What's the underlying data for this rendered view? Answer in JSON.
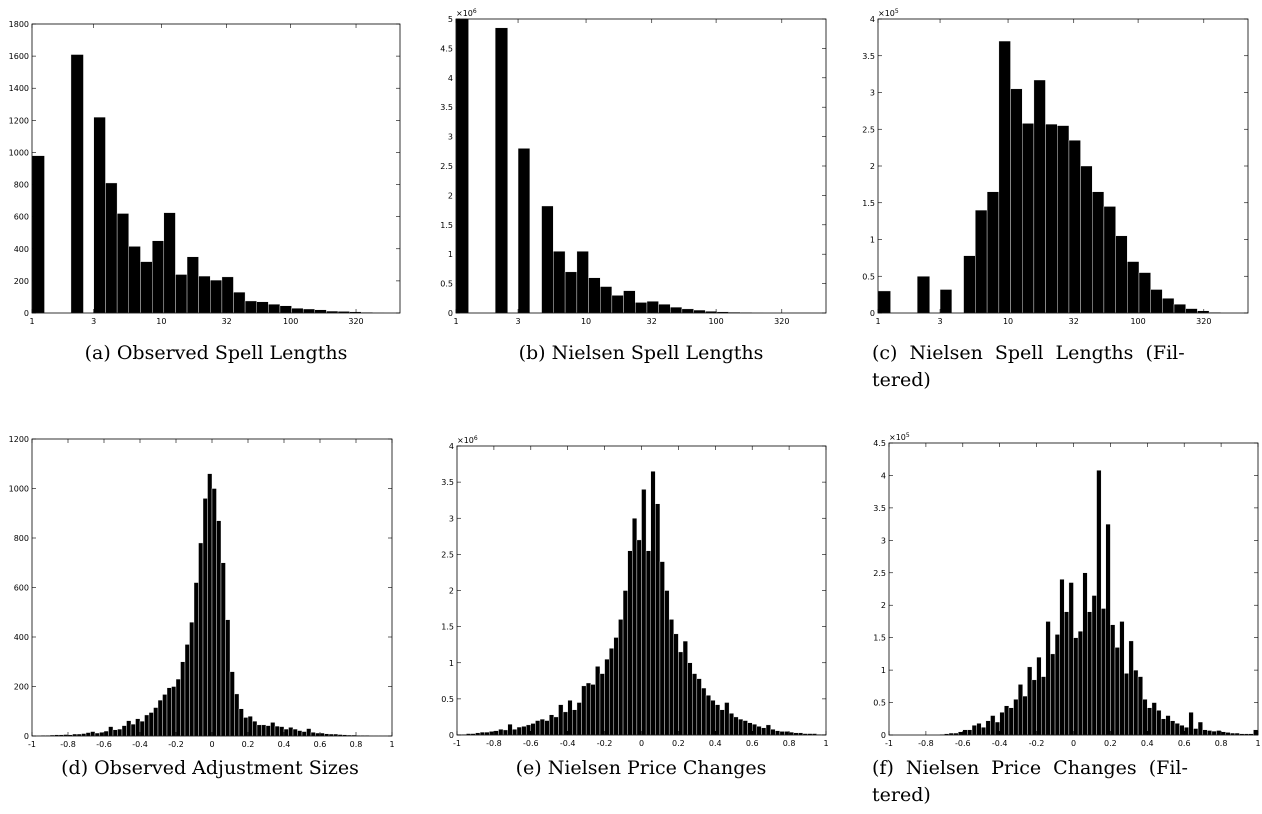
{
  "bar_color": "#000000",
  "bar_edge_color": "#ffffff",
  "axes_color": "#000000",
  "chart_data": [
    {
      "id": "a",
      "type": "bar",
      "caption": "(a) Observed Spell Lengths",
      "title": "",
      "xlabel": "",
      "ylabel": "",
      "x_scale": "log",
      "xlim": [
        1,
        700
      ],
      "ylim": [
        0,
        1800
      ],
      "yticks": [
        0,
        200,
        400,
        600,
        800,
        1000,
        1200,
        1400,
        1600,
        1800
      ],
      "ytick_labels": [
        "0",
        "200",
        "400",
        "600",
        "800",
        "1000",
        "1200",
        "1400",
        "1600",
        "1800"
      ],
      "xticks": [
        1,
        3,
        10,
        32,
        100,
        320
      ],
      "xtick_labels": [
        "1",
        "3",
        "10",
        "32",
        "100",
        "320"
      ],
      "y_exponent": "",
      "bin_edges": [
        1,
        1.25,
        2,
        2.5,
        3,
        3.7,
        4.55,
        5.6,
        6.9,
        8.5,
        10.45,
        12.85,
        15.8,
        19.4,
        23.9,
        29.4,
        36.1,
        44.4,
        54.6,
        67.2,
        82.6,
        101.6,
        124.9,
        153.6,
        188.9,
        232.3,
        285.7,
        351.4,
        432.1,
        531.4
      ],
      "values": [
        980,
        0,
        1610,
        0,
        1220,
        810,
        620,
        415,
        320,
        450,
        625,
        240,
        350,
        230,
        205,
        225,
        130,
        75,
        70,
        55,
        45,
        30,
        25,
        20,
        12,
        10,
        8,
        5,
        3
      ]
    },
    {
      "id": "b",
      "type": "bar",
      "caption": "(b) Nielsen Spell Lengths",
      "title": "",
      "xlabel": "",
      "ylabel": "",
      "x_scale": "log",
      "xlim": [
        1,
        700
      ],
      "ylim": [
        0,
        5
      ],
      "yticks": [
        0,
        0.5,
        1,
        1.5,
        2,
        2.5,
        3,
        3.5,
        4,
        4.5,
        5
      ],
      "ytick_labels": [
        "0",
        "0.5",
        "1",
        "1.5",
        "2",
        "2.5",
        "3",
        "3.5",
        "4",
        "4.5",
        "5"
      ],
      "xticks": [
        1,
        3,
        10,
        32,
        100,
        320
      ],
      "xtick_labels": [
        "1",
        "3",
        "10",
        "32",
        "100",
        "320"
      ],
      "y_exponent": "6",
      "bin_edges": [
        1,
        1.25,
        2,
        2.5,
        3,
        3.7,
        4.55,
        5.6,
        6.9,
        8.5,
        10.45,
        12.85,
        15.8,
        19.4,
        23.9,
        29.4,
        36.1,
        44.4,
        54.6,
        67.2,
        82.6,
        101.6,
        124.9,
        153.6,
        188.9,
        232.3,
        285.7,
        351.4,
        432.1,
        531.4
      ],
      "values": [
        5.0,
        0,
        4.85,
        0,
        2.8,
        0,
        1.82,
        1.05,
        0.7,
        1.05,
        0.6,
        0.45,
        0.3,
        0.38,
        0.18,
        0.2,
        0.15,
        0.1,
        0.07,
        0.05,
        0.03,
        0.02,
        0.015,
        0.01,
        0.008,
        0.005,
        0.004,
        0.003,
        0.002
      ]
    },
    {
      "id": "c",
      "type": "bar",
      "caption": "(c) Nielsen Spell Lengths (Fil-tered)",
      "caption_line1": "(c)  Nielsen  Spell  Lengths  (Fil-",
      "caption_line2": "tered)",
      "title": "",
      "xlabel": "",
      "ylabel": "",
      "x_scale": "log",
      "xlim": [
        1,
        700
      ],
      "ylim": [
        0,
        4
      ],
      "yticks": [
        0,
        0.5,
        1,
        1.5,
        2,
        2.5,
        3,
        3.5,
        4
      ],
      "ytick_labels": [
        "0",
        "0.5",
        "1",
        "1.5",
        "2",
        "2.5",
        "3",
        "3.5",
        "4"
      ],
      "xticks": [
        1,
        3,
        10,
        32,
        100,
        320
      ],
      "xtick_labels": [
        "1",
        "3",
        "10",
        "32",
        "100",
        "320"
      ],
      "y_exponent": "5",
      "bin_edges": [
        1,
        1.25,
        2,
        2.5,
        3,
        3.7,
        4.55,
        5.6,
        6.9,
        8.5,
        10.45,
        12.85,
        15.8,
        19.4,
        23.9,
        29.4,
        36.1,
        44.4,
        54.6,
        67.2,
        82.6,
        101.6,
        124.9,
        153.6,
        188.9,
        232.3,
        285.7,
        351.4,
        432.1,
        531.4
      ],
      "values": [
        0.3,
        0,
        0.5,
        0,
        0.32,
        0,
        0.78,
        1.4,
        1.65,
        3.7,
        3.05,
        2.58,
        3.17,
        2.57,
        2.55,
        2.35,
        2.0,
        1.65,
        1.45,
        1.05,
        0.7,
        0.55,
        0.32,
        0.2,
        0.12,
        0.06,
        0.03,
        0.01,
        0.005
      ]
    },
    {
      "id": "d",
      "type": "bar",
      "caption": "(d) Observed Adjustment Sizes",
      "title": "",
      "xlabel": "",
      "ylabel": "",
      "x_scale": "linear",
      "xlim": [
        -1,
        1
      ],
      "ylim": [
        0,
        1200
      ],
      "yticks": [
        0,
        200,
        400,
        600,
        800,
        1000,
        1200
      ],
      "ytick_labels": [
        "0",
        "200",
        "400",
        "600",
        "800",
        "1000",
        "1200"
      ],
      "xticks": [
        -1,
        -0.8,
        -0.6,
        -0.4,
        -0.2,
        0,
        0.2,
        0.4,
        0.6,
        0.8,
        1
      ],
      "xtick_labels": [
        "-1",
        "-0.8",
        "-0.6",
        "-0.4",
        "-0.2",
        "0",
        "0.2",
        "0.4",
        "0.6",
        "0.8",
        "1"
      ],
      "y_exponent": "",
      "bin_edges_range": [
        -1,
        1
      ],
      "values": [
        2,
        2,
        3,
        3,
        4,
        5,
        5,
        6,
        5,
        8,
        8,
        10,
        14,
        18,
        12,
        15,
        20,
        38,
        25,
        28,
        42,
        62,
        48,
        70,
        60,
        85,
        95,
        115,
        145,
        168,
        195,
        200,
        230,
        300,
        370,
        460,
        620,
        780,
        960,
        1060,
        1000,
        870,
        700,
        470,
        260,
        170,
        110,
        75,
        80,
        60,
        45,
        45,
        42,
        55,
        40,
        38,
        28,
        35,
        28,
        22,
        18,
        30,
        15,
        12,
        12,
        9,
        8,
        8,
        6,
        5,
        4,
        4,
        3,
        3,
        3,
        2,
        2,
        2,
        2,
        2
      ]
    },
    {
      "id": "e",
      "type": "bar",
      "caption": "(e) Nielsen Price Changes",
      "title": "",
      "xlabel": "",
      "ylabel": "",
      "x_scale": "linear",
      "xlim": [
        -1,
        1
      ],
      "ylim": [
        0,
        4
      ],
      "yticks": [
        0,
        0.5,
        1,
        1.5,
        2,
        2.5,
        3,
        3.5,
        4
      ],
      "ytick_labels": [
        "0",
        "0.5",
        "1",
        "1.5",
        "2",
        "2.5",
        "3",
        "3.5",
        "4"
      ],
      "xticks": [
        -1,
        -0.8,
        -0.6,
        -0.4,
        -0.2,
        0,
        0.2,
        0.4,
        0.6,
        0.8,
        1
      ],
      "xtick_labels": [
        "-1",
        "-0.8",
        "-0.6",
        "-0.4",
        "-0.2",
        "0",
        "0.2",
        "0.4",
        "0.6",
        "0.8",
        "1"
      ],
      "y_exponent": "6",
      "bin_edges_range": [
        -1,
        1
      ],
      "values": [
        0.01,
        0.01,
        0.02,
        0.02,
        0.03,
        0.04,
        0.04,
        0.05,
        0.06,
        0.08,
        0.07,
        0.15,
        0.08,
        0.11,
        0.12,
        0.14,
        0.16,
        0.2,
        0.22,
        0.2,
        0.28,
        0.25,
        0.42,
        0.32,
        0.48,
        0.35,
        0.45,
        0.68,
        0.72,
        0.7,
        0.95,
        0.85,
        1.05,
        1.2,
        1.35,
        1.6,
        2.0,
        2.55,
        3.0,
        2.7,
        3.4,
        2.55,
        3.65,
        3.2,
        2.4,
        2.0,
        1.6,
        1.4,
        1.15,
        1.3,
        1.0,
        0.85,
        0.78,
        0.65,
        0.55,
        0.48,
        0.42,
        0.35,
        0.45,
        0.3,
        0.25,
        0.22,
        0.2,
        0.17,
        0.15,
        0.12,
        0.1,
        0.14,
        0.08,
        0.06,
        0.05,
        0.05,
        0.04,
        0.03,
        0.03,
        0.02,
        0.02,
        0.02,
        0.01,
        0.01
      ]
    },
    {
      "id": "f",
      "type": "bar",
      "caption": "(f) Nielsen Price Changes (Fil-tered)",
      "caption_line1": "(f)  Nielsen  Price  Changes  (Fil-",
      "caption_line2": "tered)",
      "title": "",
      "xlabel": "",
      "ylabel": "",
      "x_scale": "linear",
      "xlim": [
        -1,
        1
      ],
      "ylim": [
        0,
        4.5
      ],
      "yticks": [
        0,
        0.5,
        1,
        1.5,
        2,
        2.5,
        3,
        3.5,
        4,
        4.5
      ],
      "ytick_labels": [
        "0",
        "0.5",
        "1",
        "1.5",
        "2",
        "2.5",
        "3",
        "3.5",
        "4",
        "4.5"
      ],
      "xticks": [
        -1,
        -0.8,
        -0.6,
        -0.4,
        -0.2,
        0,
        0.2,
        0.4,
        0.6,
        0.8,
        1
      ],
      "xtick_labels": [
        "-1",
        "-0.8",
        "-0.6",
        "-0.4",
        "-0.2",
        "0",
        "0.2",
        "0.4",
        "0.6",
        "0.8",
        "1"
      ],
      "y_exponent": "5",
      "bin_edges_range": [
        -1,
        1
      ],
      "values": [
        0,
        0,
        0,
        0,
        0,
        0,
        0,
        0,
        0,
        0,
        0,
        0.01,
        0.02,
        0.03,
        0.03,
        0.05,
        0.08,
        0.08,
        0.15,
        0.18,
        0.12,
        0.22,
        0.3,
        0.2,
        0.35,
        0.45,
        0.42,
        0.55,
        0.78,
        0.6,
        1.05,
        0.85,
        1.2,
        0.9,
        1.75,
        1.25,
        1.55,
        2.4,
        1.9,
        2.35,
        1.5,
        1.6,
        2.5,
        1.9,
        2.15,
        4.08,
        1.95,
        3.25,
        1.7,
        1.35,
        1.75,
        0.95,
        1.45,
        1.0,
        0.9,
        0.55,
        0.42,
        0.5,
        0.38,
        0.25,
        0.3,
        0.22,
        0.18,
        0.15,
        0.12,
        0.35,
        0.1,
        0.2,
        0.08,
        0.07,
        0.06,
        0.07,
        0.05,
        0.04,
        0.03,
        0.03,
        0.02,
        0.02,
        0.02,
        0.08
      ]
    }
  ]
}
